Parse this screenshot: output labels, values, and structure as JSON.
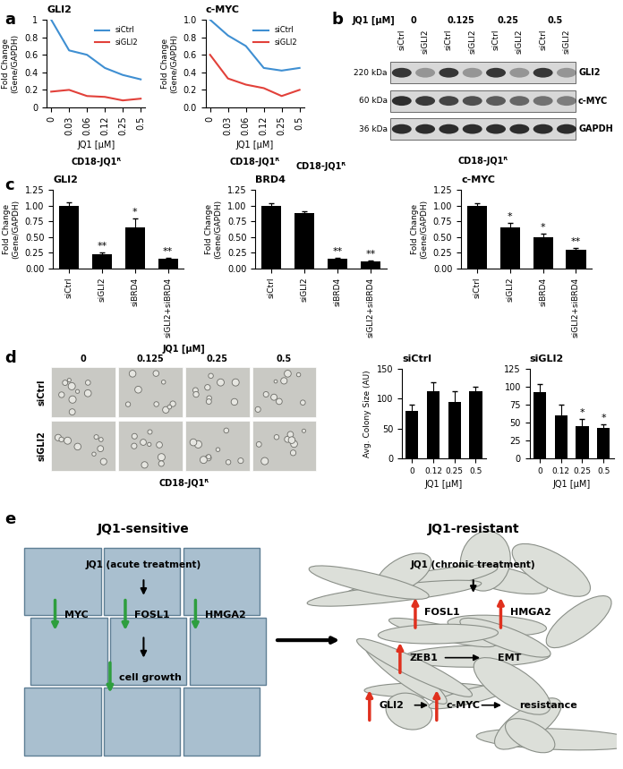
{
  "panel_labels": [
    "a",
    "b",
    "c",
    "d",
    "e"
  ],
  "chart_data": [
    {
      "type": "line",
      "title": "GLI2",
      "subtitle": "CD18-JQ1ᴿ",
      "x_label": "JQ1 [μM]",
      "y_label": "Fold Change\n(Gene/GAPDH)",
      "categories": [
        "0",
        "0.03",
        "0.06",
        "0.12",
        "0.25",
        "0.5"
      ],
      "series": [
        {
          "name": "siCtrl",
          "color": "#3f8fd2",
          "values": [
            1.0,
            0.65,
            0.6,
            0.45,
            0.37,
            0.32
          ]
        },
        {
          "name": "siGLI2",
          "color": "#e2413a",
          "values": [
            0.18,
            0.2,
            0.13,
            0.12,
            0.08,
            0.1
          ]
        }
      ],
      "ylim": [
        0,
        1
      ],
      "yticks": [
        0,
        0.2,
        0.4,
        0.6,
        0.8,
        1
      ],
      "legend": "upper right"
    },
    {
      "type": "line",
      "title": "c-MYC",
      "subtitle": "CD18-JQ1ᴿ",
      "x_label": "JQ1 [μM]",
      "y_label": "Fold Change\n(Gene/GAPDH)",
      "categories": [
        "0",
        "0.03",
        "0.06",
        "0.12",
        "0.25",
        "0.5"
      ],
      "series": [
        {
          "name": "siCtrl",
          "color": "#3f8fd2",
          "values": [
            1.0,
            0.82,
            0.7,
            0.45,
            0.42,
            0.45
          ]
        },
        {
          "name": "siGLI2",
          "color": "#e2413a",
          "values": [
            0.6,
            0.33,
            0.26,
            0.22,
            0.13,
            0.2
          ]
        }
      ],
      "ylim": [
        0,
        1
      ],
      "yticks": [
        {
          "value": 0,
          "label": "0.0"
        },
        {
          "value": 0.2,
          "label": "0.2"
        },
        {
          "value": 0.4,
          "label": "0.4"
        },
        {
          "value": 0.6,
          "label": "0.6"
        },
        {
          "value": 0.8,
          "label": "0.8"
        },
        {
          "value": 1,
          "label": "1.0"
        }
      ],
      "legend": "upper right"
    },
    {
      "type": "bar",
      "title": "GLI2",
      "y_label": "Fold Change\n(Gene/GAPDH)",
      "color": "#000000",
      "categories": [
        "siCtrl",
        "siGLI2",
        "siBRD4",
        "siGLI2+siBRD4"
      ],
      "values": [
        1.0,
        0.23,
        0.65,
        0.15
      ],
      "errors": [
        0.05,
        0.03,
        0.15,
        0.02
      ],
      "annotations": [
        null,
        "**",
        "*",
        "**"
      ],
      "ylim": [
        0,
        1.25
      ],
      "yticks": [
        {
          "value": 0,
          "label": "0.00"
        },
        {
          "value": 0.25,
          "label": "0.25"
        },
        {
          "value": 0.5,
          "label": "0.50"
        },
        {
          "value": 0.75,
          "label": "0.75"
        },
        {
          "value": 1,
          "label": "1.00"
        },
        {
          "value": 1.25,
          "label": "1.25"
        }
      ]
    },
    {
      "type": "bar",
      "title": "BRD4",
      "subtitle": "CD18-JQ1ᴿ",
      "y_label": "Fold Change\n(Gene/GAPDH)",
      "color": "#000000",
      "categories": [
        "siCtrl",
        "siGLI2",
        "siBRD4",
        "siGLI2+siBRD4"
      ],
      "values": [
        1.0,
        0.88,
        0.15,
        0.12
      ],
      "errors": [
        0.03,
        0.03,
        0.02,
        0.01
      ],
      "annotations": [
        null,
        null,
        "**",
        "**"
      ],
      "ylim": [
        0,
        1.25
      ],
      "yticks": [
        {
          "value": 0,
          "label": "0.00"
        },
        {
          "value": 0.25,
          "label": "0.25"
        },
        {
          "value": 0.5,
          "label": "0.50"
        },
        {
          "value": 0.75,
          "label": "0.75"
        },
        {
          "value": 1,
          "label": "1.00"
        },
        {
          "value": 1.25,
          "label": "1.25"
        }
      ]
    },
    {
      "type": "bar",
      "title": "c-MYC",
      "y_label": "Fold Change\n(Gene/GAPDH)",
      "color": "#000000",
      "categories": [
        "siCtrl",
        "siGLI2",
        "siBRD4",
        "siGLI2+siBRD4"
      ],
      "values": [
        1.0,
        0.65,
        0.5,
        0.3
      ],
      "errors": [
        0.04,
        0.08,
        0.06,
        0.03
      ],
      "annotations": [
        null,
        "*",
        "*",
        "**"
      ],
      "ylim": [
        0,
        1.25
      ],
      "yticks": [
        {
          "value": 0,
          "label": "0.00"
        },
        {
          "value": 0.25,
          "label": "0.25"
        },
        {
          "value": 0.5,
          "label": "0.50"
        },
        {
          "value": 0.75,
          "label": "0.75"
        },
        {
          "value": 1,
          "label": "1.00"
        },
        {
          "value": 1.25,
          "label": "1.25"
        }
      ]
    },
    {
      "type": "bar",
      "title": "siCtrl",
      "x_label": "JQ1 [μM]",
      "y_label": "Avg. Colony Size (AU)",
      "color": "#000000",
      "categories": [
        "0",
        "0.12",
        "0.25",
        "0.5"
      ],
      "values": [
        80,
        112,
        95,
        112
      ],
      "errors": [
        10,
        15,
        18,
        8
      ],
      "ylim": [
        0,
        150
      ],
      "yticks": [
        0,
        50,
        100,
        150
      ]
    },
    {
      "type": "bar",
      "title": "siGLI2",
      "x_label": "JQ1 [μM]",
      "color": "#000000",
      "categories": [
        "0",
        "0.12",
        "0.25",
        "0.5"
      ],
      "values": [
        92,
        60,
        45,
        42
      ],
      "errors": [
        12,
        15,
        10,
        5
      ],
      "annotations": [
        null,
        null,
        "*",
        "*"
      ],
      "ylim": [
        0,
        125
      ],
      "yticks": [
        0,
        25,
        50,
        75,
        100,
        125
      ]
    }
  ],
  "blot": {
    "title": "JQ1 [μM]",
    "doses": [
      "0",
      "0.125",
      "0.25",
      "0.5"
    ],
    "lanes": [
      "siCtrl",
      "siGLI2"
    ],
    "rows": [
      {
        "name": "GLI2",
        "size": "220 kDa"
      },
      {
        "name": "c-MYC",
        "size": "60 kDa"
      },
      {
        "name": "GAPDH",
        "size": "36 kDa"
      }
    ],
    "caption": "CD18-JQ1ᴿ"
  },
  "micrographs": {
    "title": "JQ1 [μM]",
    "columns": [
      "0",
      "0.125",
      "0.25",
      "0.5"
    ],
    "rows": [
      "siCtrl",
      "siGLI2"
    ],
    "caption": "CD18-JQ1ᴿ"
  },
  "diagram": {
    "left": {
      "title": "JQ1-sensitive",
      "treatment": "JQ1 (acute treatment)",
      "genes": [
        "MYC",
        "FOSL1",
        "HMGA2"
      ],
      "outcome": "cell growth"
    },
    "right": {
      "title": "JQ1-resistant",
      "treatment": "JQ1 (chronic treatment)",
      "genes": [
        "FOSL1",
        "HMGA2"
      ],
      "pathways": [
        [
          "ZEB1",
          "EMT"
        ],
        [
          "GLI2",
          "c-MYC",
          "resistance"
        ]
      ]
    }
  }
}
